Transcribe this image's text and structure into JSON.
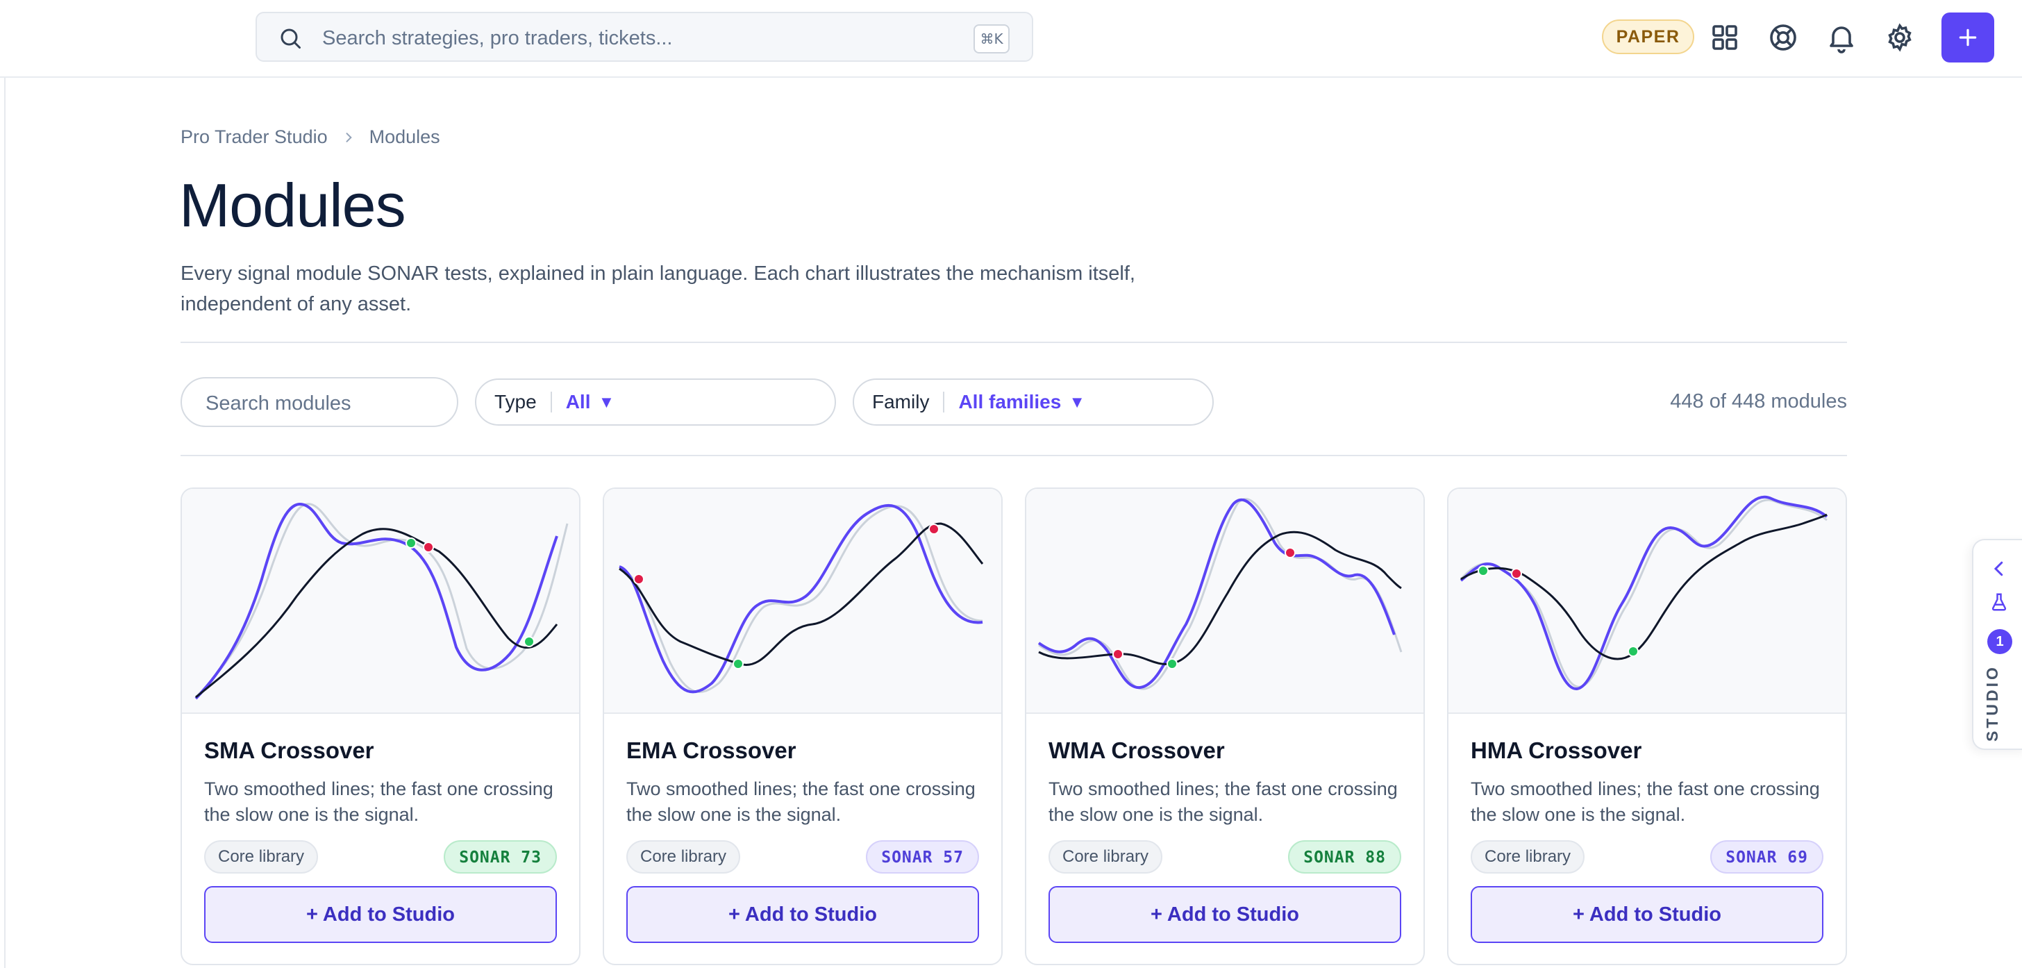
{
  "topbar": {
    "search_placeholder": "Search strategies, pro traders, tickets...",
    "search_shortcut": "⌘K",
    "mode_badge": "PAPER",
    "icons": [
      "grid-icon",
      "lifebuoy-icon",
      "bell-icon",
      "gear-icon",
      "plus-icon"
    ],
    "accent_color": "#5b45f5"
  },
  "breadcrumb": {
    "items": [
      "Pro Trader Studio",
      "Modules"
    ]
  },
  "page": {
    "title": "Modules",
    "description": "Every signal module SONAR tests, explained in plain language. Each chart illustrates the mechanism itself, independent of any asset."
  },
  "filters": {
    "search_placeholder": "Search modules",
    "type_label": "Type",
    "type_value": "All",
    "family_label": "Family",
    "family_value": "All families",
    "result_count": "448 of 448 modules"
  },
  "cards": [
    {
      "name": "SMA Crossover",
      "description": "Two smoothed lines; the fast one crossing the slow one is the signal.",
      "tag": "Core library",
      "sonar": "SONAR 73",
      "sonar_tone": "green",
      "button": "+ Add to Studio"
    },
    {
      "name": "EMA Crossover",
      "description": "Two smoothed lines; the fast one crossing the slow one is the signal.",
      "tag": "Core library",
      "sonar": "SONAR 57",
      "sonar_tone": "purple",
      "button": "+ Add to Studio"
    },
    {
      "name": "WMA Crossover",
      "description": "Two smoothed lines; the fast one crossing the slow one is the signal.",
      "tag": "Core library",
      "sonar": "SONAR 88",
      "sonar_tone": "green",
      "button": "+ Add to Studio"
    },
    {
      "name": "HMA Crossover",
      "description": "Two smoothed lines; the fast one crossing the slow one is the signal.",
      "tag": "Core library",
      "sonar": "SONAR 69",
      "sonar_tone": "purple",
      "button": "+ Add to Studio"
    }
  ],
  "studio_tab": {
    "label": "STUDIO",
    "badge_count": "1",
    "icons": [
      "chevron-left-icon",
      "flask-icon"
    ]
  }
}
